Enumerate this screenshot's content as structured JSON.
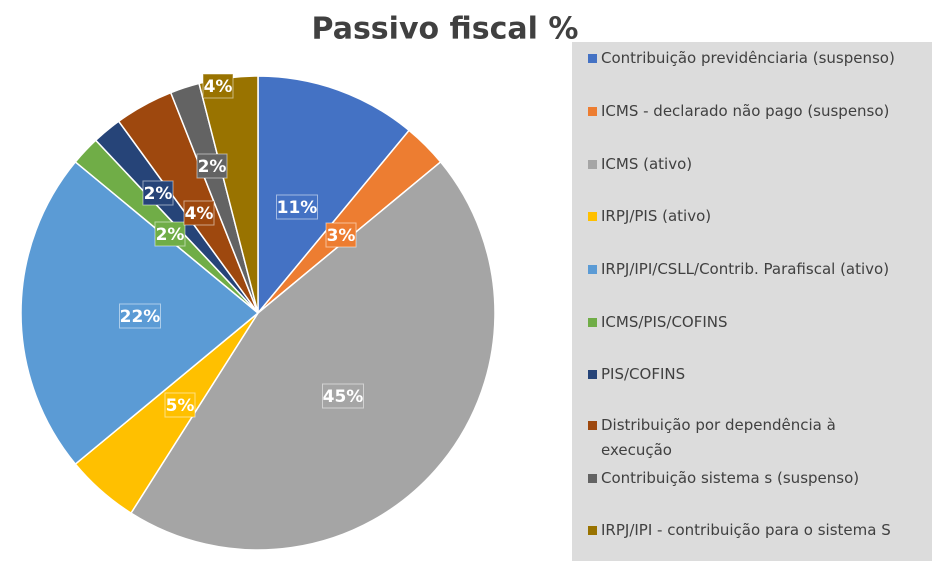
{
  "chart_data": {
    "type": "pie",
    "title": "Passivo fiscal %",
    "categories": [
      "Contribuição previdênciaria (suspenso)",
      "ICMS - declarado não pago (suspenso)",
      "ICMS  (ativo)",
      "IRPJ/PIS (ativo)",
      "IRPJ/IPI/CSLL/Contrib. Parafiscal (ativo)",
      "ICMS/PIS/COFINS",
      "PIS/COFINS",
      "Distribuição por dependência à execução",
      "Contribuição sistema s (suspenso)",
      "IRPJ/IPI - contribuição para o sistema S"
    ],
    "values": [
      11,
      3,
      45,
      5,
      22,
      2,
      2,
      4,
      2,
      4
    ],
    "value_labels": [
      "11%",
      "3%",
      "45%",
      "5%",
      "22%",
      "2%",
      "2%",
      "4%",
      "2%",
      "4%"
    ],
    "colors": [
      "#4472c4",
      "#ed7d31",
      "#a5a5a5",
      "#ffc000",
      "#5b9bd5",
      "#70ad47",
      "#264478",
      "#9e480e",
      "#636363",
      "#997300"
    ],
    "legend": "right"
  }
}
